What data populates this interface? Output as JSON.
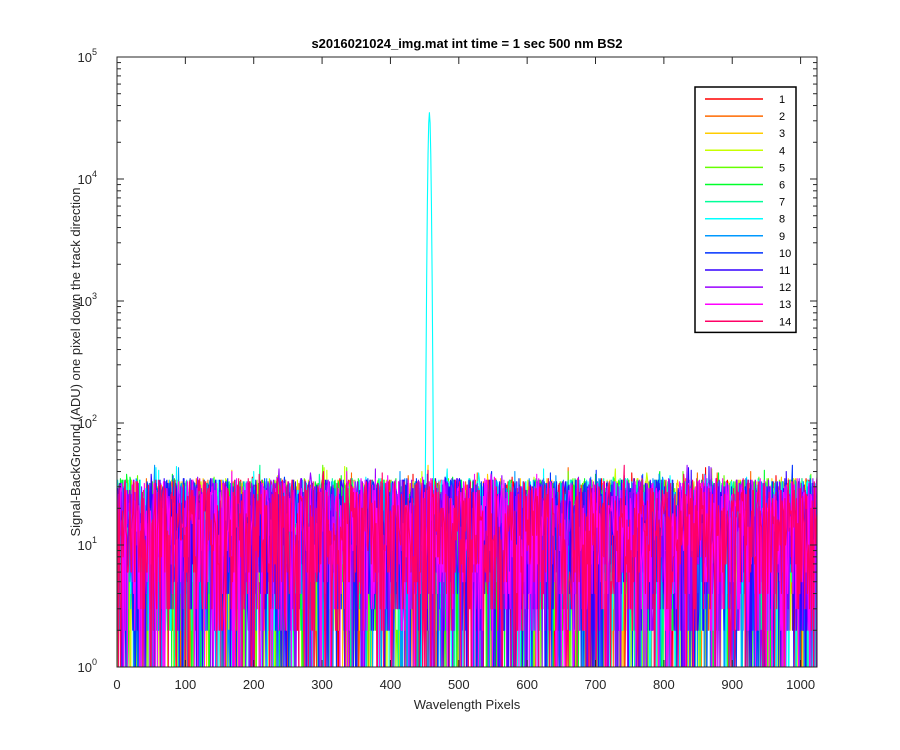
{
  "chart_data": {
    "type": "line",
    "title": "s2016021024_img.mat int time = 1 sec  500 nm BS2",
    "xlabel": "Wavelength Pixels",
    "ylabel": "Signal-BackGround (ADU) one pixel down the track direction",
    "xlim": [
      0,
      1024
    ],
    "ylim": [
      1,
      100000
    ],
    "yscale": "log",
    "xticks": [
      0,
      100,
      200,
      300,
      400,
      500,
      600,
      700,
      800,
      900,
      1000
    ],
    "xtick_labels": [
      "0",
      "100",
      "200",
      "300",
      "400",
      "500",
      "600",
      "700",
      "800",
      "900",
      "1000"
    ],
    "yticks": [
      1,
      10,
      100,
      1000,
      10000,
      100000
    ],
    "ytick_labels": [
      {
        "base": "10",
        "exp": "0"
      },
      {
        "base": "10",
        "exp": "1"
      },
      {
        "base": "10",
        "exp": "2"
      },
      {
        "base": "10",
        "exp": "3"
      },
      {
        "base": "10",
        "exp": "4"
      },
      {
        "base": "10",
        "exp": "5"
      }
    ],
    "grid": false,
    "legend_position": "top-right",
    "series": [
      {
        "name": "1",
        "color": "#ff0000"
      },
      {
        "name": "2",
        "color": "#ff6a00"
      },
      {
        "name": "3",
        "color": "#ffcc00"
      },
      {
        "name": "4",
        "color": "#c8ff00"
      },
      {
        "name": "5",
        "color": "#66ff00"
      },
      {
        "name": "6",
        "color": "#00ff2a"
      },
      {
        "name": "7",
        "color": "#00ff99"
      },
      {
        "name": "8",
        "color": "#00ffff",
        "peak": {
          "x": 457,
          "y": 35000
        }
      },
      {
        "name": "9",
        "color": "#0099ff"
      },
      {
        "name": "10",
        "color": "#0033ff"
      },
      {
        "name": "11",
        "color": "#3300ff"
      },
      {
        "name": "12",
        "color": "#9900ff"
      },
      {
        "name": "13",
        "color": "#ff00ff"
      },
      {
        "name": "14",
        "color": "#ff0066"
      }
    ],
    "noise_range": [
      1,
      45
    ]
  }
}
